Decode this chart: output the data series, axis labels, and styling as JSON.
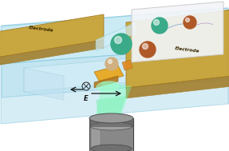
{
  "fig_width": 2.87,
  "fig_height": 1.89,
  "dpi": 100,
  "bg_color": "#ffffff",
  "channel_color_top": "#8ed4e8",
  "channel_color_side": "#a8dce8",
  "electrode_color": "#c8a030",
  "electrode_dark": "#a07820",
  "left_electrode_label": "Electrode",
  "right_electrode_label": "Electrode",
  "particle1_color": "#3aaa88",
  "particle2_color": "#b05828",
  "particle3_color": "#c09858",
  "E_label": "E",
  "inset_color": "#f2f5f8",
  "laser_color": "#60ffa0"
}
